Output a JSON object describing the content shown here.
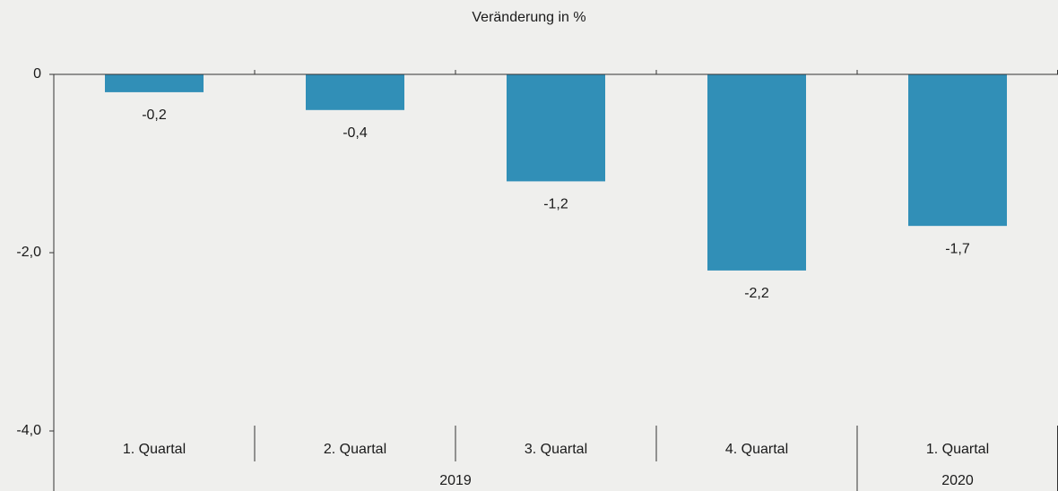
{
  "chart_data": {
    "type": "bar",
    "title": "Veränderung in %",
    "categories": [
      "1. Quartal",
      "2. Quartal",
      "3. Quartal",
      "4. Quartal",
      "1. Quartal"
    ],
    "groups": [
      "2019",
      "2019",
      "2019",
      "2019",
      "2020"
    ],
    "values": [
      -0.2,
      -0.4,
      -1.2,
      -2.2,
      -1.7
    ],
    "value_labels": [
      "-0,2",
      "-0,4",
      "-1,2",
      "-2,2",
      "-1,7"
    ],
    "color": "#318fb7",
    "ylim": [
      -4,
      0
    ],
    "yticks": [
      0,
      {
        "value": -2,
        "label": "-2,0"
      },
      {
        "value": -4,
        "label": "-4,0"
      }
    ],
    "grid": false
  }
}
